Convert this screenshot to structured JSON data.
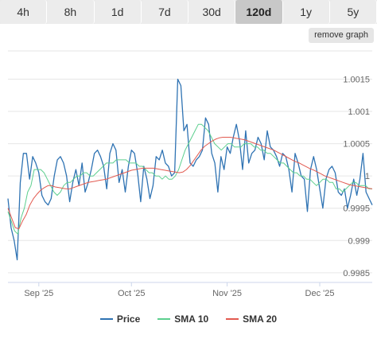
{
  "tabs": [
    {
      "label": "4h",
      "active": false
    },
    {
      "label": "8h",
      "active": false
    },
    {
      "label": "1d",
      "active": false
    },
    {
      "label": "7d",
      "active": false
    },
    {
      "label": "30d",
      "active": false
    },
    {
      "label": "120d",
      "active": true
    },
    {
      "label": "1y",
      "active": false
    },
    {
      "label": "5y",
      "active": false
    }
  ],
  "remove_graph_label": "remove graph",
  "colors": {
    "price": "#2f73b3",
    "sma10": "#5ccf8e",
    "sma20": "#e25a50"
  },
  "chart_data": {
    "type": "line",
    "x_ticks": [
      {
        "label": "Sep '25",
        "day": 10
      },
      {
        "label": "Oct '25",
        "day": 40
      },
      {
        "label": "Nov '25",
        "day": 71
      },
      {
        "label": "Dec '25",
        "day": 101
      }
    ],
    "y_ticks": [
      "1.0015",
      "1.001",
      "1.0005",
      "1",
      "0.9995",
      "0.999",
      "0.9985"
    ],
    "y_tick_values": [
      1.0015,
      1.001,
      1.0005,
      1.0,
      0.9995,
      0.999,
      0.9985
    ],
    "ylim": [
      0.99835,
      1.00195
    ],
    "xlim": [
      0,
      118
    ],
    "grid": true,
    "legend_position": "bottom",
    "series": [
      {
        "name": "Price",
        "values": [
          0.99965,
          0.9992,
          0.999,
          0.9987,
          0.9999,
          1.00035,
          1.00035,
          0.99995,
          1.0003,
          1.0002,
          1.00005,
          0.9997,
          0.9996,
          0.99955,
          0.99965,
          1.0,
          1.00025,
          1.0003,
          1.0002,
          1.0,
          0.9996,
          0.9999,
          1.0001,
          0.99985,
          1.0002,
          0.99975,
          0.9999,
          1.0001,
          1.00035,
          1.0004,
          1.0003,
          1.00015,
          0.9998,
          1.00035,
          1.0005,
          1.0004,
          0.9999,
          1.0001,
          0.99975,
          1.00015,
          1.0004,
          1.00035,
          1.00005,
          0.9996,
          1.00015,
          0.99995,
          0.99965,
          0.99985,
          1.0003,
          1.00025,
          1.0004,
          1.0002,
          1.00015,
          1.0,
          1.00005,
          1.0015,
          1.0014,
          1.0007,
          1.0008,
          1.0002,
          1.00015,
          1.00025,
          1.0003,
          1.0004,
          1.0009,
          1.0008,
          1.00035,
          1.0002,
          0.99975,
          1.0003,
          1.0001,
          1.00045,
          1.00035,
          1.0006,
          1.0008,
          1.00055,
          1.0001,
          1.0007,
          1.0002,
          1.00035,
          1.0004,
          1.0006,
          1.0005,
          1.00025,
          1.0007,
          1.00045,
          1.0004,
          1.0003,
          1.00015,
          1.00035,
          1.0003,
          1.0001,
          0.99975,
          1.00035,
          1.0002,
          1.0,
          0.99995,
          0.99945,
          1.0001,
          1.0003,
          1.0001,
          0.9998,
          0.9995,
          0.99995,
          1.0001,
          1.00015,
          1.00005,
          0.99975,
          0.9997,
          0.9998,
          0.9995,
          0.9997,
          0.99995,
          0.9997,
          0.99995,
          1.00035,
          0.99975,
          0.99965,
          0.99955
        ]
      },
      {
        "name": "SMA 10",
        "values": [
          0.99945,
          0.9993,
          0.99915,
          0.9991,
          0.99935,
          0.9995,
          0.99975,
          0.99985,
          1.0001,
          1.0001,
          1.0001,
          1.00005,
          0.99995,
          0.99985,
          0.99975,
          0.9997,
          0.99975,
          0.99985,
          0.9999,
          0.9999,
          0.99995,
          1.0,
          1.0,
          1.00005,
          1.00005,
          1.0,
          1.0,
          1.00005,
          1.0001,
          1.00015,
          1.0002,
          1.0002,
          1.0002,
          1.00025,
          1.00025,
          1.00025,
          1.00025,
          1.0002,
          1.0002,
          1.0002,
          1.00015,
          1.00015,
          1.0001,
          1.00005,
          1.00005,
          1.0,
          1.0,
          0.99995,
          1.0,
          0.99995,
          0.99995,
          1.0,
          1.0001,
          1.00025,
          1.0004,
          1.0005,
          1.0006,
          1.0007,
          1.0008,
          1.0008,
          1.00075,
          1.0007,
          1.0006,
          1.0005,
          1.00045,
          1.0004,
          1.00045,
          1.0005,
          1.0005,
          1.00045,
          1.00045,
          1.00045,
          1.0005,
          1.0005,
          1.0005,
          1.00045,
          1.00045,
          1.0004,
          1.0004,
          1.00035,
          1.00035,
          1.0003,
          1.00025,
          1.0002,
          1.0002,
          1.00015,
          1.0001,
          1.00005,
          1.00005,
          1.0,
          1.0,
          0.99995,
          0.99995,
          0.9999,
          0.99985,
          0.9999,
          0.99995,
          0.99995,
          0.9999,
          0.9999,
          0.9998,
          0.9998,
          0.99975,
          0.9998,
          0.99985,
          0.9999,
          0.9999,
          0.99985,
          0.99985,
          0.99985,
          0.9998,
          0.9998
        ]
      },
      {
        "name": "SMA 20",
        "values": [
          0.9995,
          0.99935,
          0.9992,
          0.99918,
          0.9993,
          0.9994,
          0.99955,
          0.99965,
          0.99972,
          0.99978,
          0.99982,
          0.99985,
          0.99985,
          0.99983,
          0.99982,
          0.99981,
          0.9998,
          0.9998,
          0.99982,
          0.99984,
          0.99986,
          0.99988,
          0.9999,
          0.99991,
          0.99992,
          0.99993,
          0.99994,
          0.99995,
          0.99997,
          0.99999,
          1.00001,
          1.00003,
          1.00005,
          1.00007,
          1.00009,
          1.0001,
          1.00011,
          1.00012,
          1.00012,
          1.00012,
          1.00012,
          1.00011,
          1.0001,
          1.00009,
          1.00008,
          1.00007,
          1.00006,
          1.00005,
          1.00006,
          1.0001,
          1.00016,
          1.00024,
          1.00032,
          1.0004,
          1.00046,
          1.0005,
          1.00054,
          1.00057,
          1.00059,
          1.0006,
          1.0006,
          1.0006,
          1.00059,
          1.00058,
          1.00057,
          1.00056,
          1.00054,
          1.00052,
          1.0005,
          1.00048,
          1.00046,
          1.00044,
          1.00042,
          1.0004,
          1.00037,
          1.00034,
          1.00031,
          1.00028,
          1.00025,
          1.00022,
          1.0002,
          1.00017,
          1.00014,
          1.00011,
          1.00009,
          1.00006,
          1.00003,
          1.0,
          0.99998,
          0.99996,
          0.99994,
          0.99992,
          0.9999,
          0.99988,
          0.99986,
          0.99985,
          0.99984,
          0.99983,
          0.99982,
          0.99981,
          0.9998
        ]
      }
    ]
  }
}
